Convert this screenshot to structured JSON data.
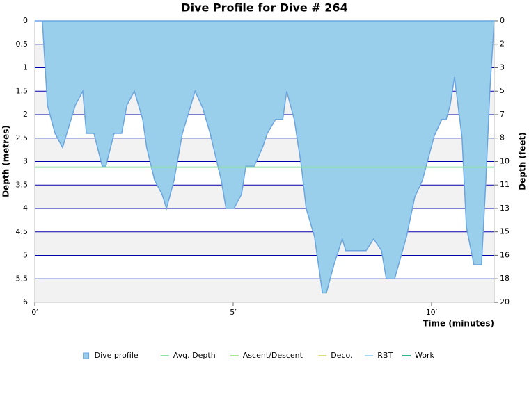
{
  "chart_data": {
    "type": "area",
    "title": "Dive Profile for Dive # 264",
    "xlabel": "Time (minutes)",
    "ylabel": "Depth (metres)",
    "y2label": "Depth (feet)",
    "x": [
      0,
      0.19,
      0.32,
      0.51,
      0.7,
      1.02,
      1.21,
      1.3,
      1.49,
      1.7,
      1.79,
      2.0,
      2.19,
      2.32,
      2.51,
      2.72,
      2.82,
      3.02,
      3.21,
      3.32,
      3.51,
      3.72,
      4.04,
      4.23,
      4.42,
      4.7,
      4.82,
      5.02,
      5.21,
      5.32,
      5.53,
      5.74,
      5.86,
      6.07,
      6.25,
      6.35,
      6.54,
      6.72,
      6.84,
      7.05,
      7.25,
      7.35,
      7.54,
      7.75,
      7.84,
      8.35,
      8.54,
      8.74,
      8.86,
      9.07,
      9.37,
      9.58,
      9.77,
      10.07,
      10.26,
      10.37,
      10.47,
      10.58,
      10.77,
      10.88,
      11.07,
      11.26,
      11.37,
      11.47,
      11.58
    ],
    "series": [
      {
        "name": "Dive profile",
        "color": "#99cfea",
        "stroke": "#6aa5e0",
        "values": [
          0,
          0,
          1.8,
          2.4,
          2.7,
          1.8,
          1.5,
          2.4,
          2.4,
          3.1,
          3.1,
          2.4,
          2.4,
          1.8,
          1.5,
          2.1,
          2.7,
          3.4,
          3.7,
          4.0,
          3.4,
          2.4,
          1.5,
          1.85,
          2.4,
          3.4,
          4.0,
          4.0,
          3.7,
          3.1,
          3.1,
          2.7,
          2.4,
          2.1,
          2.1,
          1.5,
          2.1,
          3.1,
          4.0,
          4.6,
          5.8,
          5.8,
          5.2,
          4.65,
          4.9,
          4.9,
          4.65,
          4.9,
          5.5,
          5.5,
          4.6,
          3.75,
          3.4,
          2.45,
          2.1,
          2.1,
          1.8,
          1.2,
          2.5,
          4.4,
          5.2,
          5.2,
          3.4,
          1.5,
          0
        ]
      },
      {
        "name": "Avg. Depth",
        "color": "#90e0a8",
        "value": 3.12
      },
      {
        "name": "Ascent/Descent",
        "color": "#a8e890"
      },
      {
        "name": "Deco.",
        "color": "#d8e07a"
      },
      {
        "name": "RBT",
        "color": "#a6d9f2"
      },
      {
        "name": "Work",
        "color": "#2eb38a"
      }
    ],
    "xlim": [
      0,
      11.58
    ],
    "xticks": [
      {
        "value": 0,
        "label": "0′"
      },
      {
        "value": 5,
        "label": "5′"
      },
      {
        "value": 10,
        "label": "10′"
      }
    ],
    "ylim": [
      0,
      6
    ],
    "yticks": [
      0,
      0.5,
      1,
      1.5,
      2,
      2.5,
      3,
      3.5,
      4,
      4.5,
      5,
      5.5,
      6
    ],
    "y_inverted": true,
    "y2lim": [
      0,
      19.685
    ],
    "y2ticks": [
      0,
      {
        "value": 1.64,
        "label": "2"
      },
      {
        "value": 3.28,
        "label": "3"
      },
      {
        "value": 4.92,
        "label": "5"
      },
      {
        "value": 6.56,
        "label": "7"
      },
      {
        "value": 8.2,
        "label": "8"
      },
      {
        "value": 9.84,
        "label": "10"
      },
      {
        "value": 11.48,
        "label": "11"
      },
      {
        "value": 13.12,
        "label": "13"
      },
      {
        "value": 14.76,
        "label": "15"
      },
      {
        "value": 16.4,
        "label": "16"
      },
      {
        "value": 18.04,
        "label": "18"
      },
      {
        "value": 19.69,
        "label": "20"
      }
    ],
    "grid": true,
    "grid_color": "#0000aa",
    "band_color": "#f2f2f2",
    "legend": "bottom"
  }
}
